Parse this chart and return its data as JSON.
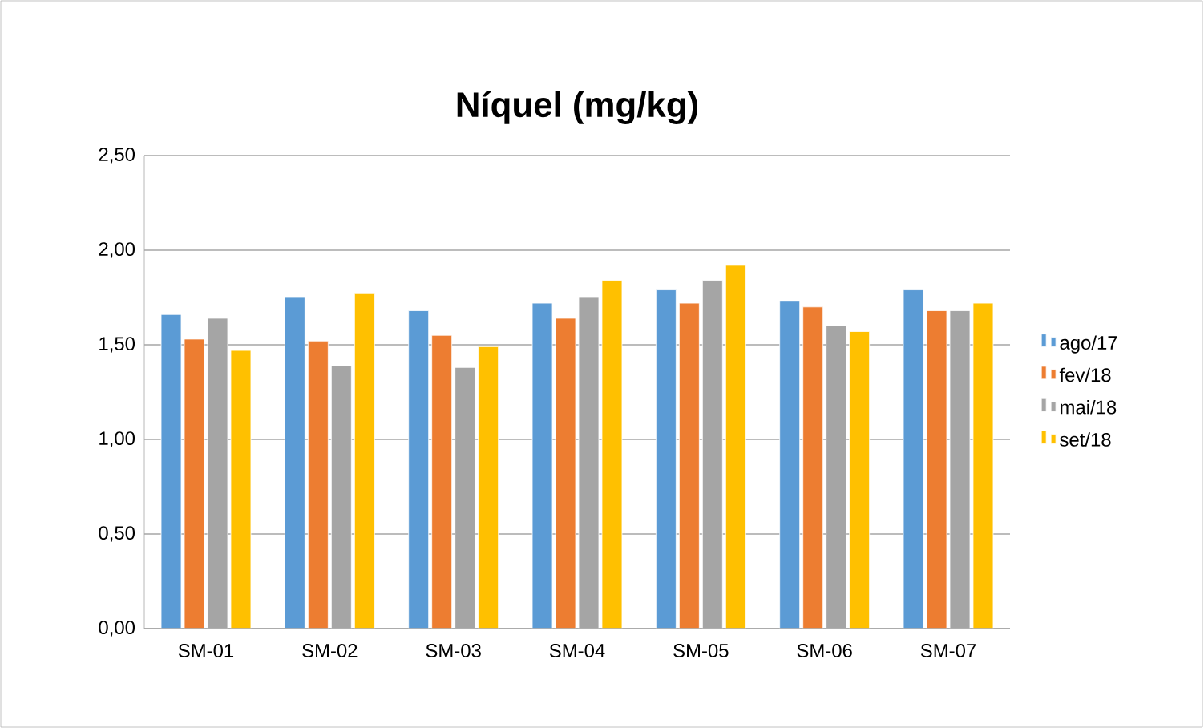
{
  "chart_data": {
    "type": "bar",
    "title": "Níquel (mg/kg)",
    "categories": [
      "SM-01",
      "SM-02",
      "SM-03",
      "SM-04",
      "SM-05",
      "SM-06",
      "SM-07"
    ],
    "series": [
      {
        "name": "ago/17",
        "color": "#5b9bd5",
        "values": [
          1.66,
          1.75,
          1.68,
          1.72,
          1.79,
          1.73,
          1.79
        ]
      },
      {
        "name": "fev/18",
        "color": "#ed7d31",
        "values": [
          1.53,
          1.52,
          1.55,
          1.64,
          1.72,
          1.7,
          1.68
        ]
      },
      {
        "name": "mai/18",
        "color": "#a5a5a5",
        "values": [
          1.64,
          1.39,
          1.38,
          1.75,
          1.84,
          1.6,
          1.68
        ]
      },
      {
        "name": "set/18",
        "color": "#ffc000",
        "values": [
          1.47,
          1.77,
          1.49,
          1.84,
          1.92,
          1.57,
          1.72
        ]
      }
    ],
    "ylim": [
      0,
      2.5
    ],
    "yticks": [
      {
        "value": 0,
        "label": "0,00"
      },
      {
        "value": 0.5,
        "label": "0,50"
      },
      {
        "value": 1,
        "label": "1,00"
      },
      {
        "value": 1.5,
        "label": "1,50"
      },
      {
        "value": 2,
        "label": "2,00"
      },
      {
        "value": 2.5,
        "label": "2,50"
      }
    ],
    "grid": "y",
    "legend": "right"
  }
}
